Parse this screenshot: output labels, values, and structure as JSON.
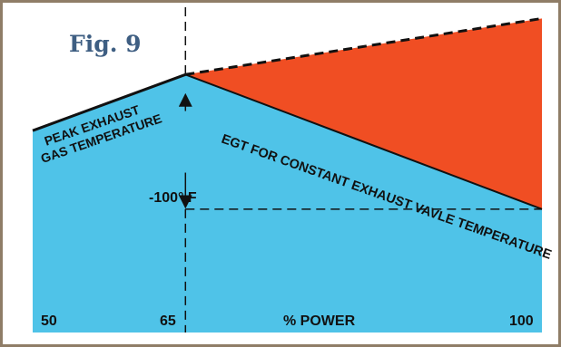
{
  "figure": {
    "label": "Fig. 9"
  },
  "colors": {
    "frame": "#8f7d67",
    "below": "#4fc3e8",
    "between": "#f04e23",
    "line": "#111111",
    "title": "#3e5e82"
  },
  "chart_data": {
    "type": "area",
    "title": "",
    "xlabel": "% POWER",
    "ylabel": "",
    "x_ticks": [
      50,
      65,
      100
    ],
    "x_tick_labels": [
      "50",
      "65",
      "100"
    ],
    "xlim": [
      50,
      100
    ],
    "ylim": [
      -230,
      60
    ],
    "series": [
      {
        "name": "PEAK EXHAUST GAS TEMPERATURE",
        "x": [
          50,
          65,
          100
        ],
        "y": [
          -50,
          0,
          50
        ],
        "style": "solid-to-peak-then-dashed"
      },
      {
        "name": "EGT FOR CONSTANT EXHAUST VAVLE TEMPERATURE",
        "x": [
          65,
          100
        ],
        "y": [
          0,
          -120
        ]
      }
    ],
    "annotations": {
      "peak_label_line1": "PEAK EXHAUST",
      "peak_label_line2": "GAS TEMPERATURE",
      "egt_label": "EGT FOR CONSTANT EXHAUST VAVLE TEMPERATURE",
      "delta_label": "-100° F",
      "reference_y": -120,
      "peak_x": 65
    }
  }
}
